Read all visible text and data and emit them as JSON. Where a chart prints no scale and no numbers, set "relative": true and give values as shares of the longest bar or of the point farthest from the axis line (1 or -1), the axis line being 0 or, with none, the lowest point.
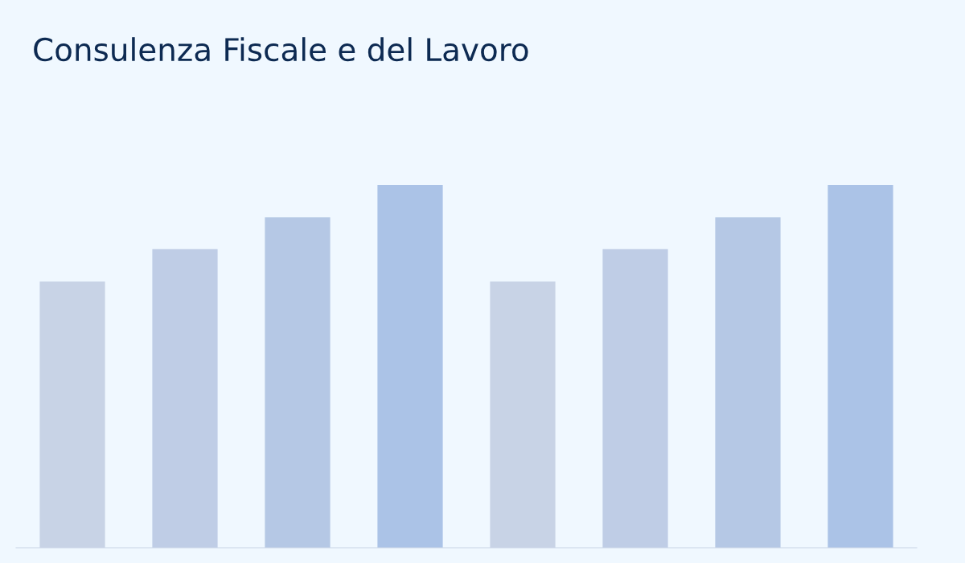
{
  "chart_data": {
    "type": "bar",
    "title": "Consulenza Fiscale e del Lavoro",
    "relative": true,
    "categories": [
      null,
      null,
      null,
      null,
      null,
      null,
      null,
      null
    ],
    "values": [
      0.734,
      0.823,
      0.911,
      1,
      0.734,
      0.823,
      0.911,
      1
    ],
    "colors": [
      "#c8d3e6",
      "#bfcde6",
      "#b5c8e5",
      "#abc3e7",
      "#c8d3e6",
      "#bfcde6",
      "#b5c8e5",
      "#abc3e7"
    ],
    "grid": false,
    "legend": false
  }
}
